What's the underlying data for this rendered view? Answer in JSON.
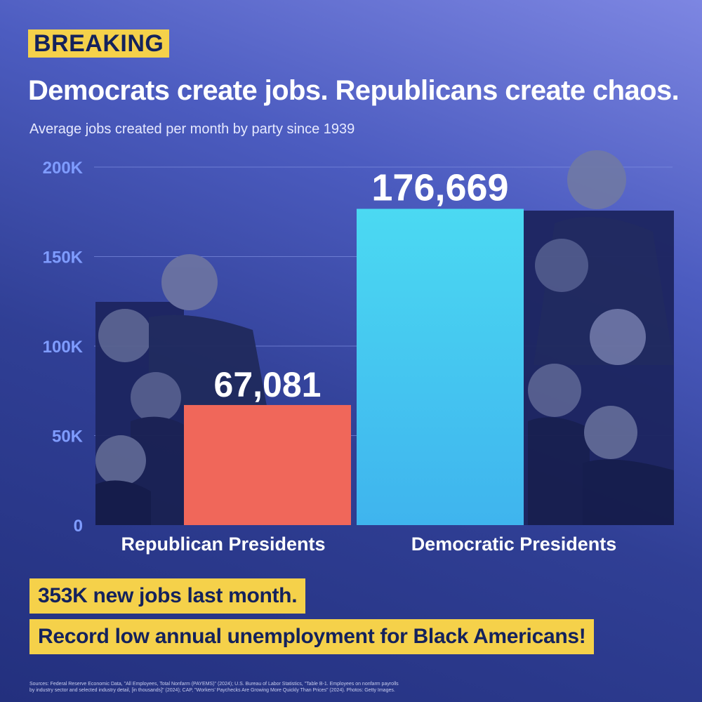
{
  "badge": "BREAKING",
  "headline": "Democrats create jobs. Republicans create chaos.",
  "chart_data": {
    "type": "bar",
    "title": "",
    "subtitle": "Average jobs created per month by party since 1939",
    "categories": [
      "Republican Presidents",
      "Democratic Presidents"
    ],
    "values": [
      67081,
      176669
    ],
    "value_labels": [
      "67,081",
      "176,669"
    ],
    "ylim": [
      0,
      200000
    ],
    "yticks": [
      0,
      50000,
      100000,
      150000,
      200000
    ],
    "ytick_labels": [
      "0",
      "50K",
      "100K",
      "150K",
      "200K"
    ],
    "xlabel": "",
    "ylabel": "",
    "grid": true,
    "legend": "none",
    "colors": [
      "#f0675a",
      "#45c6ee"
    ]
  },
  "callouts": [
    "353K new jobs last month.",
    "Record low annual unemployment for Black Americans!"
  ],
  "sources": {
    "line1": "Sources: Federal Reserve Economic Data, \"All Employees, Total Nonfarm (PAYEMS)\" (2024); U.S. Bureau of Labor Statistics, \"Table B-1. Employees on nonfarm payrolls",
    "line2": "by industry sector and selected industry detail, [in thousands]\" (2024); CAP, \"Workers' Paychecks Are Growing More Quickly Than Prices\" (2024). Photos: Getty Images."
  },
  "colors": {
    "accent_yellow": "#f5d14a",
    "republican_bar": "#f0675a",
    "democratic_bar": "#45c6ee",
    "tick_label": "#7f9cff"
  },
  "icons": [
    "republican-presidents-photo-collage",
    "democratic-presidents-photo-collage"
  ]
}
